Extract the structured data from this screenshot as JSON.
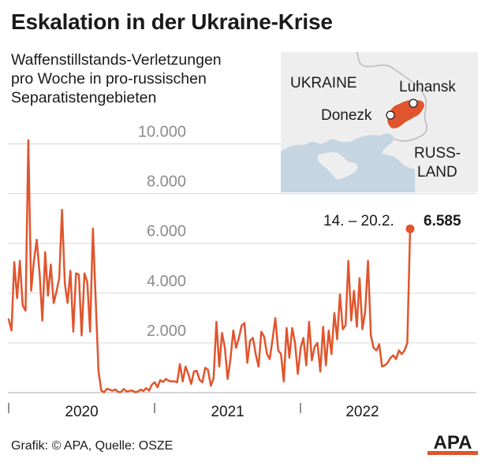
{
  "header": {
    "title": "Eskalation in der Ukraine-Krise",
    "subtitle_lines": [
      "Waffenstillstands-Verletzungen",
      "pro Woche in pro-russischen",
      "Separatistengebieten"
    ]
  },
  "map": {
    "labels": {
      "ukraine": "UKRAINE",
      "luhansk": "Luhansk",
      "donezk": "Donezk",
      "russland_1": "RUSS-",
      "russland_2": "LAND"
    },
    "colors": {
      "land": "#eeeeee",
      "sea": "#c5d5e2",
      "region": "#e0552d",
      "border": "#b9b9b9"
    }
  },
  "chart_data": {
    "type": "line",
    "title": "",
    "xlabel": "",
    "ylabel": "",
    "ylim": [
      0,
      11000
    ],
    "yticks": [
      2000,
      4000,
      6000,
      8000,
      10000
    ],
    "ytick_labels": [
      "2.000",
      "4.000",
      "6.000",
      "8.000",
      "10.000"
    ],
    "xlabels": [
      "2020",
      "2021",
      "2022"
    ],
    "grid": true,
    "color": "#e0552d",
    "series": [
      {
        "values": [
          2950,
          2500,
          5250,
          3800,
          5300,
          3500,
          3300,
          10150,
          4100,
          5300,
          6150,
          4800,
          2900,
          5650,
          3900,
          5150,
          3600,
          4050,
          4600,
          7350,
          4400,
          3600,
          4900,
          2450,
          4800,
          4750,
          2300,
          4800,
          4450,
          2450,
          6600,
          3750,
          850,
          80,
          20,
          160,
          120,
          80,
          130,
          30,
          30,
          150,
          50,
          70,
          90,
          20,
          40,
          120,
          70,
          180,
          80,
          320,
          420,
          220,
          500,
          430,
          550,
          480,
          450,
          460,
          420,
          1150,
          450,
          1050,
          750,
          350,
          850,
          880,
          520,
          420,
          1000,
          920,
          280,
          580,
          2850,
          1050,
          2400,
          1800,
          550,
          1350,
          2500,
          1800,
          2200,
          2700,
          2800,
          1200,
          2100,
          2200,
          1550,
          1050,
          2450,
          2250,
          1550,
          1350,
          2150,
          3000,
          1700,
          1550,
          450,
          2600,
          1400,
          2600,
          2000,
          750,
          1800,
          2200,
          1100,
          2850,
          1300,
          1850,
          2000,
          850,
          2650,
          1100,
          2500,
          1550,
          3200,
          2150,
          3950,
          2550,
          2700,
          5300,
          2900,
          4100,
          2650,
          4600,
          2550,
          3250,
          5300,
          2300,
          1800,
          1700,
          1950,
          1050,
          1100,
          1200,
          1400,
          1500,
          1350,
          1700,
          1550,
          1700,
          2000,
          6585
        ]
      }
    ],
    "annotation": {
      "date_label": "14. – 20.2.",
      "value_label": "6.585"
    }
  },
  "footer": {
    "source": "Grafik: © APA, Quelle: OSZE",
    "logo": "APA"
  }
}
